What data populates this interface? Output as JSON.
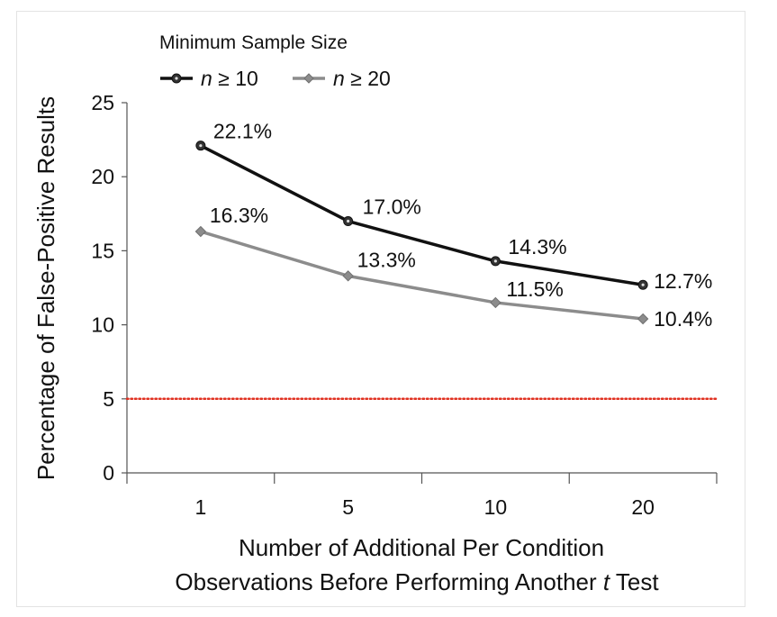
{
  "chart_data": {
    "type": "line",
    "xlabel_lines": [
      "Number of Additional Per Condition",
      "Observations Before Performing Another",
      "t",
      "Test"
    ],
    "ylabel": "Percentage of False-Positive Results",
    "categories": [
      "1",
      "5",
      "10",
      "20"
    ],
    "yticks": [
      "0",
      "5",
      "10",
      "15",
      "20",
      "25"
    ],
    "ylim": [
      0,
      25
    ],
    "legend": {
      "title": "Minimum Sample Size",
      "placement": "top-left",
      "entries": [
        {
          "italic": "n",
          "rest": " ≥ 10"
        },
        {
          "italic": "n",
          "rest": " ≥ 20"
        }
      ]
    },
    "series": [
      {
        "name": "n ≥ 10",
        "color": "#111111",
        "marker": "circle",
        "values": [
          22.1,
          17.0,
          14.3,
          12.7
        ],
        "labels": [
          "22.1%",
          "17.0%",
          "14.3%",
          "12.7%"
        ]
      },
      {
        "name": "n ≥ 20",
        "color": "#8c8c8c",
        "marker": "diamond",
        "values": [
          16.3,
          13.3,
          11.5,
          10.4
        ],
        "labels": [
          "16.3%",
          "13.3%",
          "11.5%",
          "10.4%"
        ]
      }
    ],
    "reference_line": {
      "y": 5,
      "color": "#e03020",
      "style": "dotted"
    }
  }
}
